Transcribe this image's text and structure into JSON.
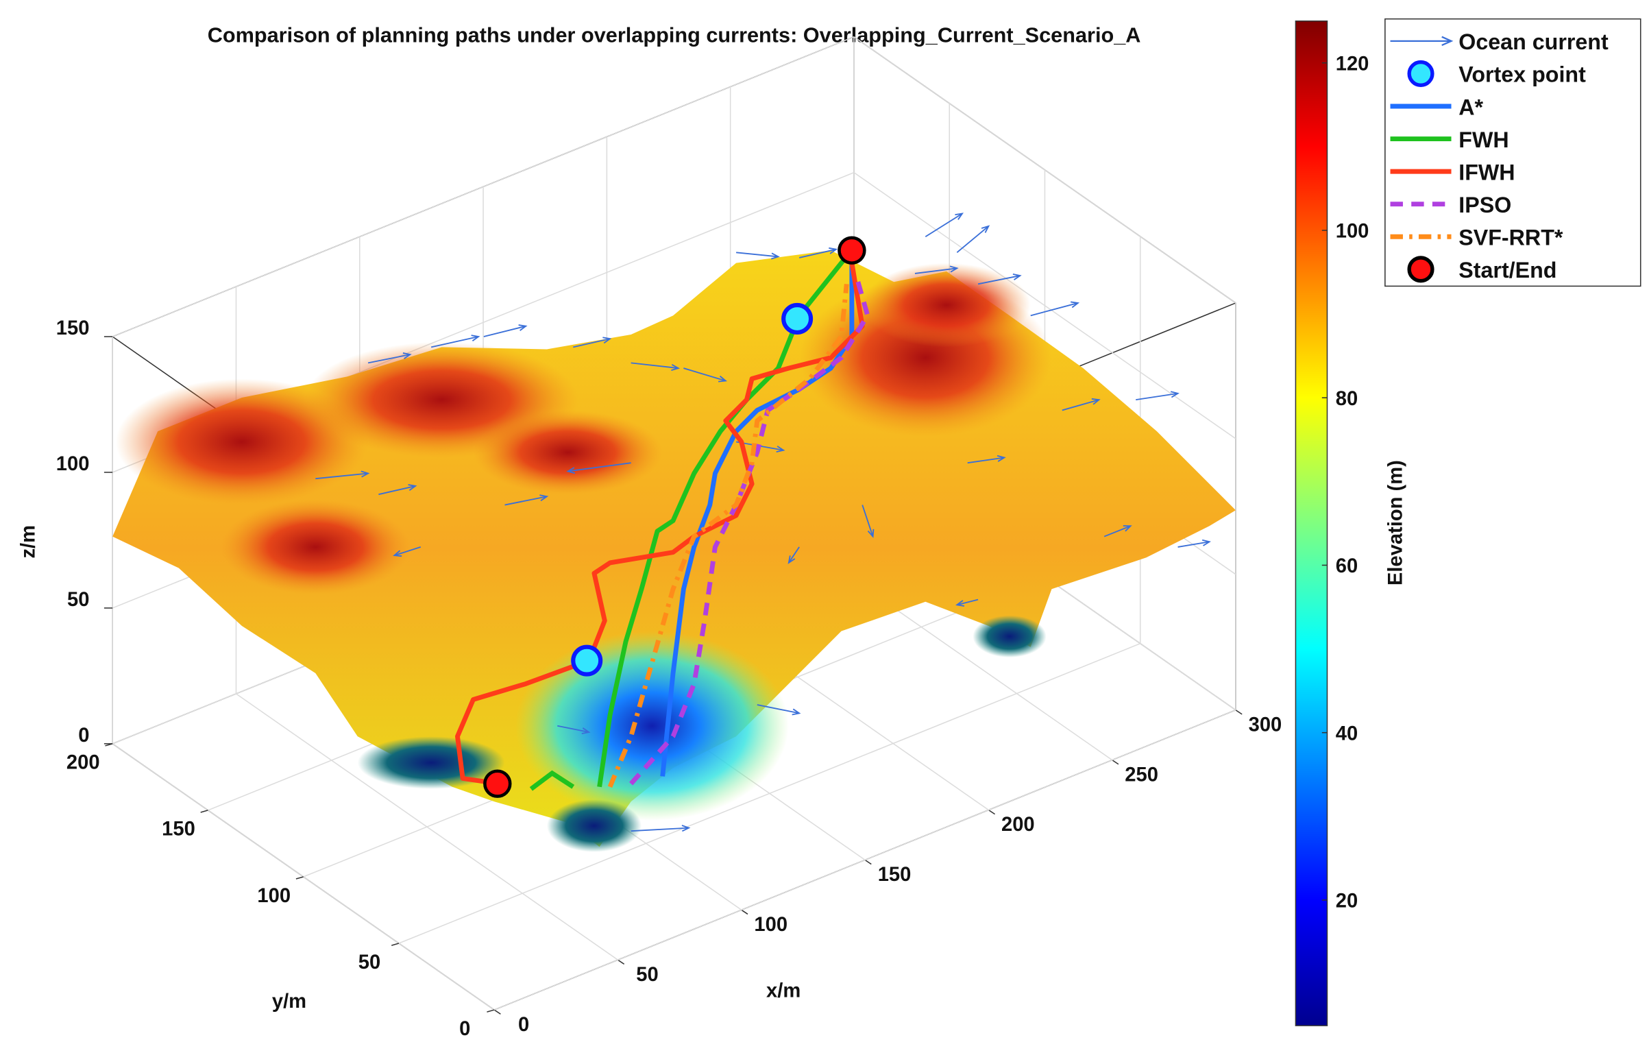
{
  "chart_data": {
    "type": "surface3d",
    "title": "Comparison of planning paths under overlapping currents: Overlapping_Current_Scenario_A",
    "xlabel": "x/m",
    "ylabel": "y/m",
    "zlabel": "z/m",
    "xlim": [
      0,
      300
    ],
    "xticks": [
      0,
      50,
      100,
      150,
      200,
      250,
      300
    ],
    "ylim": [
      0,
      200
    ],
    "yticks": [
      0,
      50,
      100,
      150,
      200
    ],
    "zlim": [
      0,
      150
    ],
    "zticks": [
      0,
      50,
      100,
      150
    ],
    "grid": true,
    "legend_position": "northeast",
    "colorbar": {
      "label": "Elevation (m)",
      "colormap": "jet",
      "clim": [
        5,
        125
      ],
      "ticks": [
        20,
        40,
        60,
        80,
        100,
        120
      ]
    },
    "series": [
      {
        "name": "Ocean current",
        "color": "#3a6fd8",
        "style": "arrow"
      },
      {
        "name": "Vortex point",
        "color": "#0a1aff",
        "face": "#33e6ff",
        "style": "circle"
      },
      {
        "name": "A*",
        "color": "#1f6fff",
        "style": "solid"
      },
      {
        "name": "FWH",
        "color": "#1fc21f",
        "style": "solid"
      },
      {
        "name": "IFWH",
        "color": "#ff3b1a",
        "style": "solid"
      },
      {
        "name": "IPSO",
        "color": "#b040e0",
        "style": "dashed"
      },
      {
        "name": "SVF-RRT*",
        "color": "#ff8c1a",
        "style": "dashdot"
      },
      {
        "name": "Start/End",
        "color": "#000000",
        "face": "#ff1010",
        "style": "circle"
      }
    ]
  }
}
